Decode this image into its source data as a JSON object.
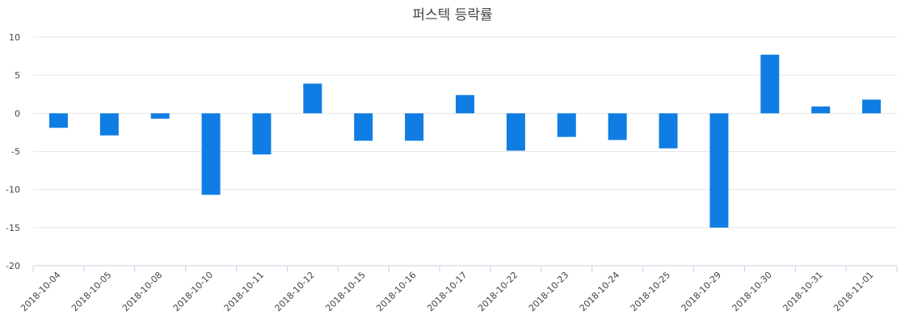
{
  "colors": {
    "bar": "#0f7de3",
    "grid": "#e6e6e6",
    "axis": "#c8d3e0",
    "text": "#444444"
  },
  "chart_data": {
    "type": "bar",
    "title": "퍼스텍 등락률",
    "xlabel": "",
    "ylabel": "",
    "ylim": [
      -20,
      10
    ],
    "yticks": [
      10,
      5,
      0,
      -5,
      -10,
      -15,
      -20
    ],
    "grid": true,
    "legend": "none",
    "categories": [
      "2018-10-04",
      "2018-10-05",
      "2018-10-08",
      "2018-10-10",
      "2018-10-11",
      "2018-10-12",
      "2018-10-15",
      "2018-10-16",
      "2018-10-17",
      "2018-10-22",
      "2018-10-23",
      "2018-10-24",
      "2018-10-25",
      "2018-10-29",
      "2018-10-30",
      "2018-10-31",
      "2018-11-01"
    ],
    "values": [
      -1.9,
      -2.9,
      -0.7,
      -10.7,
      -5.4,
      3.9,
      -3.6,
      -3.6,
      2.4,
      -4.9,
      -3.1,
      -3.5,
      -4.6,
      -15.0,
      7.7,
      0.9,
      1.8
    ]
  }
}
